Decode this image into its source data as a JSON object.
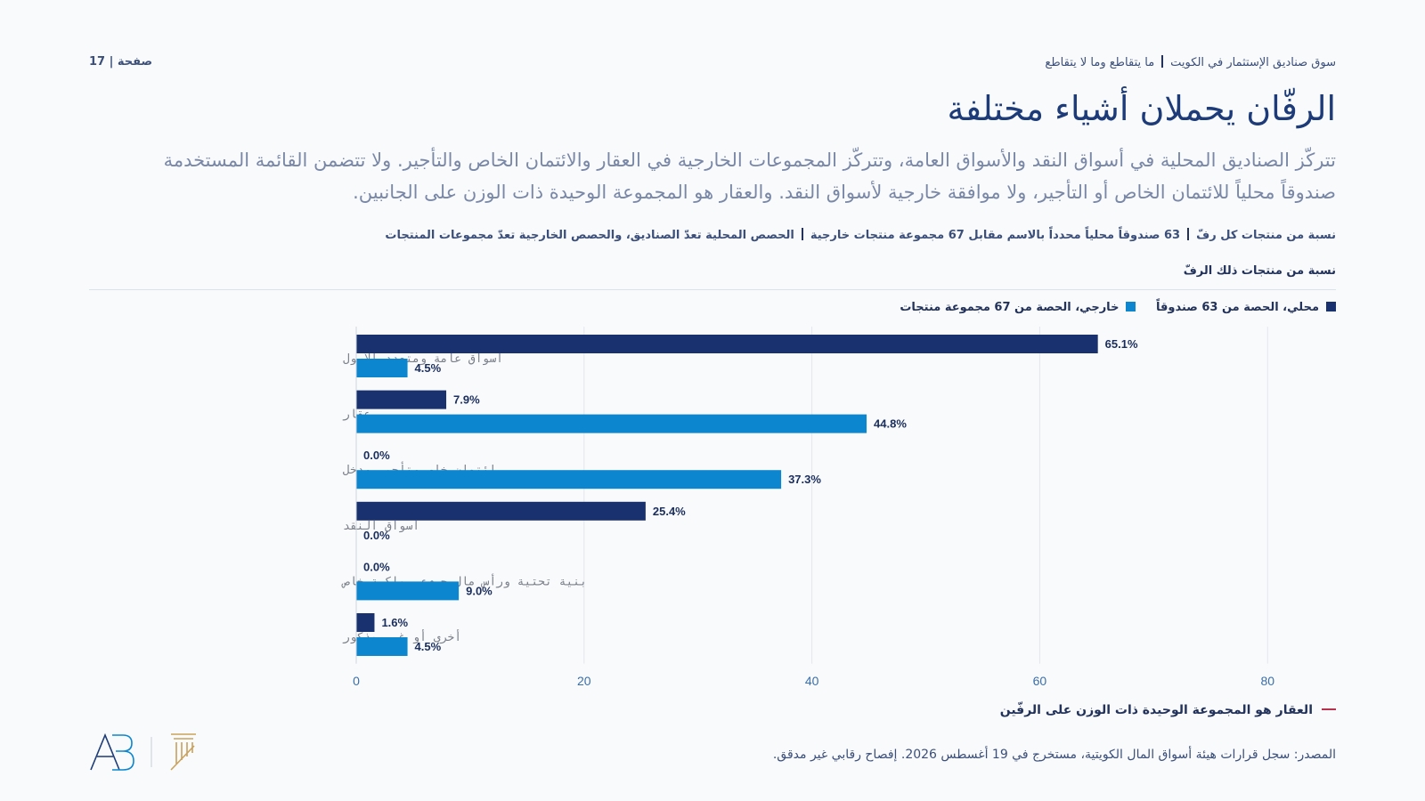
{
  "header": {
    "page_label": "صفحة | 17",
    "breadcrumb_main": "سوق صناديق الإستثمار في الكويت",
    "breadcrumb_sub": "ما يتقاطع وما لا يتقاطع"
  },
  "title": "الرفّان يحملان أشياء مختلفة",
  "subtitle": "تتركّز الصناديق المحلية في أسواق النقد والأسواق العامة، وتتركّز المجموعات الخارجية في العقار والائتمان الخاص والتأجير. ولا تتضمن القائمة المستخدمة صندوقاً محلياً للائتمان الخاص أو التأجير، ولا موافقة خارجية لأسواق النقد. والعقار هو المجموعة الوحيدة ذات الوزن على الجانبين.",
  "meta": {
    "part1": "نسبة من منتجات كل رفّ",
    "part2": "63 صندوقاً محلياً محدداً بالاسم مقابل 67 مجموعة منتجات خارجية",
    "part3": "الحصص المحلية تعدّ الصناديق، والحصص الخارجية تعدّ مجموعات المنتجات"
  },
  "axis_caption": "نسبة من منتجات ذلك الرفّ",
  "colors": {
    "domestic": "#1a3170",
    "foreign": "#0b86cf",
    "accent": "#b83250"
  },
  "chart_data": {
    "type": "bar",
    "orientation": "horizontal",
    "categories": [
      "أسواق عامة ومتعدد الأصول",
      "عقار",
      "ائتمان خاص وتأجير ودخل",
      "أسواق النقد",
      "بنية تحتية ورأس مال جريء وملكية خاص",
      "أخرى أو غير مذكور"
    ],
    "series": [
      {
        "name": "محلي، الحصة من 63 صندوقاً",
        "values": [
          65.1,
          7.9,
          0.0,
          25.4,
          0.0,
          1.6
        ]
      },
      {
        "name": "خارجي، الحصة من 67 مجموعة منتجات",
        "values": [
          4.5,
          44.8,
          37.3,
          0.0,
          9.0,
          4.5
        ]
      }
    ],
    "value_labels": [
      [
        "65.1%",
        "7.9%",
        "0.0%",
        "25.4%",
        "0.0%",
        "1.6%"
      ],
      [
        "4.5%",
        "44.8%",
        "37.3%",
        "0.0%",
        "9.0%",
        "4.5%"
      ]
    ],
    "xticks": [
      "0",
      "20",
      "40",
      "60",
      "80"
    ],
    "xlim": [
      0,
      86
    ],
    "grid": true,
    "legend_position": "top-right"
  },
  "takeaway": "العقار هو المجموعة الوحيدة ذات الوزن على الرفّين",
  "source": "المصدر: سجل قرارات هيئة أسواق المال الكويتية، مستخرج في 19 أغسطس 2026. إفصاح رقابي غير مدقق."
}
